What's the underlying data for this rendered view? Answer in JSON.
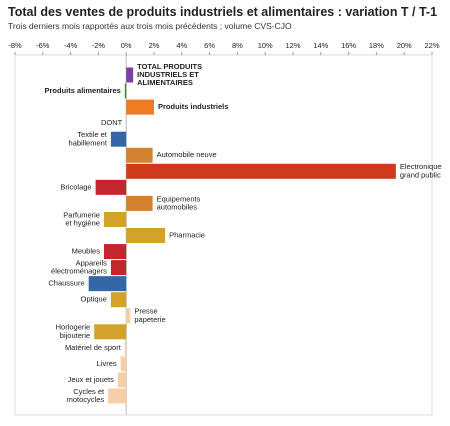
{
  "chart_data": {
    "type": "hbar",
    "title": "Total des ventes de produits industriels et alimentaires : variation T / T-1",
    "subtitle": "Trois derniers mois rapportés aux trois mois précédents ; volume CVS-CJO",
    "categories": [
      [
        "TOTAL PRODUITS",
        "INDUSTRIELS ET",
        "ALIMENTAIRES"
      ],
      [
        "Produits alimentaires"
      ],
      [
        "Produits industriels"
      ],
      [
        "DONT"
      ],
      [
        "Textile et",
        "habillement"
      ],
      [
        "Automobile neuve"
      ],
      [
        "Electronique",
        "grand public"
      ],
      [
        "Bricolage"
      ],
      [
        "Equipements",
        "automobiles"
      ],
      [
        "Parfumerie",
        "et hygiène"
      ],
      [
        "Pharmacie"
      ],
      [
        "Meubles"
      ],
      [
        "Appareils",
        "électroménagers"
      ],
      [
        "Chaussure"
      ],
      [
        "Optique"
      ],
      [
        "Presse",
        "papeterie"
      ],
      [
        "Horlogerie",
        "bijouterie"
      ],
      [
        "Matériel de sport"
      ],
      [
        "Livres"
      ],
      [
        "Jeux et jouets"
      ],
      [
        "Cycles et",
        "motocycles"
      ]
    ],
    "values": [
      0.5,
      -0.1,
      2.0,
      null,
      -1.1,
      1.9,
      19.4,
      -2.2,
      1.9,
      -1.6,
      2.8,
      -1.6,
      -1.1,
      -2.7,
      -1.1,
      0.3,
      -2.3,
      -0.1,
      -0.4,
      -0.6,
      -1.3
    ],
    "colors": [
      "#7b3fa6",
      "#3a8a3a",
      "#ef7b25",
      null,
      "#3566a6",
      "#d2812e",
      "#cf3a1c",
      "#c4262e",
      "#d2812e",
      "#d4a12a",
      "#d4a12a",
      "#c4262e",
      "#c4262e",
      "#3566a6",
      "#d4a12a",
      "#f6cfa8",
      "#d4a12a",
      "#f6cfa8",
      "#f6cfa8",
      "#f6cfa8",
      "#f6cfa8"
    ],
    "xlim": [
      -8,
      22
    ],
    "xticks": [
      {
        "value": -8,
        "label": "-8%"
      },
      {
        "value": -6,
        "label": "-6%"
      },
      {
        "value": -4,
        "label": "-4%"
      },
      {
        "value": -2,
        "label": "-2%"
      },
      {
        "value": 0,
        "label": "0%"
      },
      {
        "value": 2,
        "label": "2%"
      },
      {
        "value": 4,
        "label": "4%"
      },
      {
        "value": 6,
        "label": "6%"
      },
      {
        "value": 8,
        "label": "8%"
      },
      {
        "value": 10,
        "label": "10%"
      },
      {
        "value": 12,
        "label": "12%"
      },
      {
        "value": 14,
        "label": "14%"
      },
      {
        "value": 16,
        "label": "16%"
      },
      {
        "value": 18,
        "label": "18%"
      },
      {
        "value": 20,
        "label": "20%"
      },
      {
        "value": 22,
        "label": "22%"
      }
    ]
  }
}
